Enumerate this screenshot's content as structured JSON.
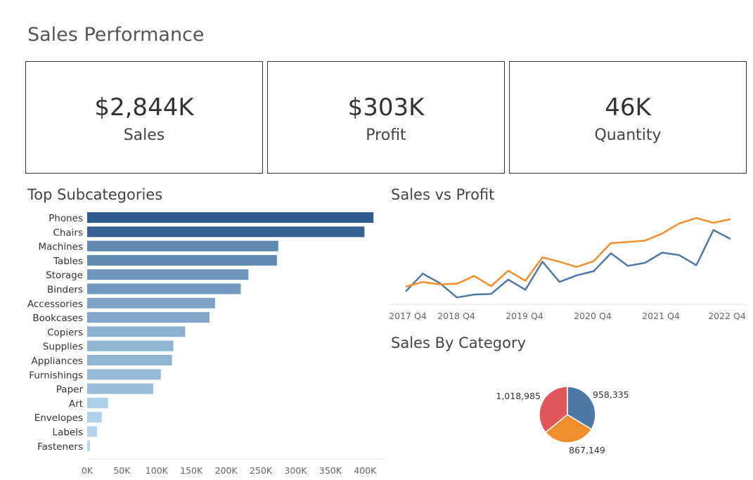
{
  "page": {
    "title": "Sales Performance"
  },
  "kpis": [
    {
      "value": "$2,844K",
      "label": "Sales"
    },
    {
      "value": "$303K",
      "label": "Profit"
    },
    {
      "value": "46K",
      "label": "Quantity"
    }
  ],
  "colors": {
    "sales_line": "#4e79a7",
    "profit_line": "#f28e2b",
    "bar_dark": "#2f5b8f",
    "bar_light": "#b3d7ee",
    "pie_red": "#e15759",
    "pie_blue": "#4e79a7",
    "pie_orange": "#f28e2b"
  },
  "chart_data": [
    {
      "type": "bar",
      "orientation": "horizontal",
      "title": "Top Subcategories",
      "categories": [
        "Phones",
        "Chairs",
        "Machines",
        "Tables",
        "Storage",
        "Binders",
        "Accessories",
        "Bookcases",
        "Copiers",
        "Supplies",
        "Appliances",
        "Furnishings",
        "Paper",
        "Art",
        "Envelopes",
        "Labels",
        "Fasteners"
      ],
      "values": [
        412000,
        399000,
        275000,
        273000,
        232000,
        221000,
        184000,
        176000,
        141000,
        124000,
        122000,
        106000,
        95000,
        30000,
        21000,
        14000,
        4000
      ],
      "xlim": [
        0,
        430000
      ],
      "xticks": [
        0,
        50000,
        100000,
        150000,
        200000,
        250000,
        300000,
        350000,
        400000
      ],
      "xtick_labels": [
        "0K",
        "50K",
        "100K",
        "150K",
        "200K",
        "250K",
        "300K",
        "350K",
        "400K"
      ],
      "grid": false
    },
    {
      "type": "line",
      "title": "Sales vs Profit",
      "x_tick_labels": [
        "2017 Q4",
        "2018 Q4",
        "2019 Q4",
        "2020 Q4",
        "2021 Q4",
        "2022 Q4"
      ],
      "series": [
        {
          "values": [
            0.12,
            0.42,
            0.26,
            0.02,
            0.07,
            0.08,
            0.32,
            0.15,
            0.62,
            0.28,
            0.39,
            0.46,
            0.76,
            0.55,
            0.6,
            0.77,
            0.73,
            0.56,
            1.15,
            1.0
          ]
        },
        {
          "values": [
            0.2,
            0.28,
            0.24,
            0.25,
            0.38,
            0.21,
            0.47,
            0.3,
            0.69,
            0.62,
            0.53,
            0.63,
            0.93,
            0.95,
            0.97,
            1.09,
            1.26,
            1.35,
            1.27,
            1.33
          ]
        }
      ],
      "grid": false
    },
    {
      "type": "pie",
      "title": "Sales By Category",
      "slices": [
        {
          "value": 958335,
          "label": "958,335"
        },
        {
          "value": 867149,
          "label": "867,149"
        },
        {
          "value": 1018985,
          "label": "1,018,985"
        }
      ]
    }
  ]
}
